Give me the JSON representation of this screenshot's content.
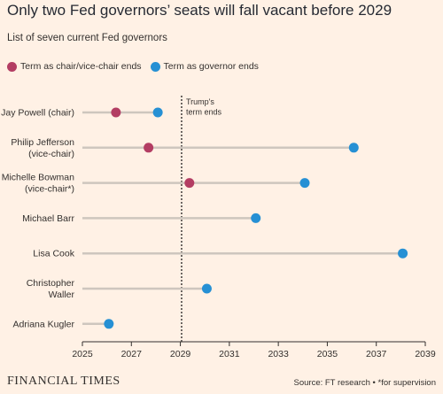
{
  "title": "Only two Fed governors’ seats will fall vacant before 2029",
  "subtitle": "List of seven current Fed governors",
  "legend": {
    "chair": "Term as chair/vice-chair ends",
    "governor": "Term as governor ends"
  },
  "footer": {
    "logo": "FINANCIAL TIMES",
    "source": "Source: FT research • *for supervision"
  },
  "colors": {
    "chair": "#B33D63",
    "governor": "#2690D4",
    "line": "#CEC6BE",
    "axis": "#33302E",
    "background": "#FFF1E5"
  },
  "chart_data": {
    "type": "scatter",
    "title": "Only two Fed governors’ seats will fall vacant before 2029",
    "subtitle": "List of seven current Fed governors",
    "x_ticks": [
      2025,
      2027,
      2029,
      2031,
      2033,
      2035,
      2037,
      2039
    ],
    "xlim": [
      2025,
      2039
    ],
    "reference_line": {
      "x": 2029.05,
      "label": [
        "Trump's",
        "term ends"
      ]
    },
    "governors": [
      {
        "label": [
          "Jay Powell (chair)"
        ],
        "chair_end": 2026.37,
        "governor_end": 2028.08
      },
      {
        "label": [
          "Philip Jefferson",
          "(vice-chair)"
        ],
        "chair_end": 2027.7,
        "governor_end": 2036.08
      },
      {
        "label": [
          "Michelle Bowman",
          "(vice-chair*)"
        ],
        "chair_end": 2029.37,
        "governor_end": 2034.08
      },
      {
        "label": [
          "Michael Barr"
        ],
        "chair_end": null,
        "governor_end": 2032.08
      },
      {
        "label": [
          "Lisa Cook"
        ],
        "chair_end": null,
        "governor_end": 2038.08
      },
      {
        "label": [
          "Christopher",
          "Waller"
        ],
        "chair_end": null,
        "governor_end": 2030.08
      },
      {
        "label": [
          "Adriana Kugler"
        ],
        "chair_end": null,
        "governor_end": 2026.08
      }
    ]
  }
}
